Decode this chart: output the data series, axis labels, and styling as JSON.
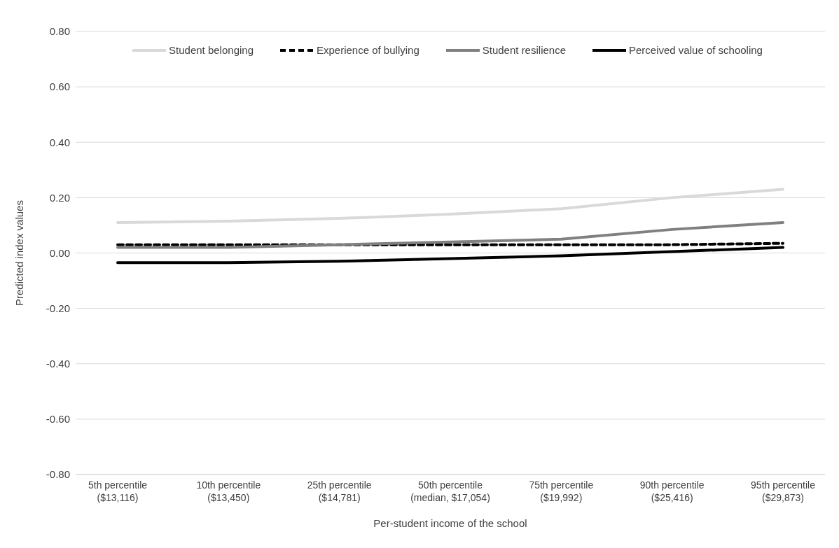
{
  "chart_data": {
    "type": "line",
    "categories": [
      "5th percentile\n($13,116)",
      "10th percentile\n($13,450)",
      "25th percentile\n($14,781)",
      "50th percentile\n(median, $17,054)",
      "75th percentile\n($19,992)",
      "90th percentile\n($25,416)",
      "95th percentile\n($29,873)"
    ],
    "series": [
      {
        "name": "Student belonging",
        "color": "#d9d9d9",
        "line_style": "solid",
        "values": [
          0.11,
          0.115,
          0.125,
          0.14,
          0.16,
          0.2,
          0.23
        ]
      },
      {
        "name": "Experience of bullying",
        "color": "#000000",
        "line_style": "dashed",
        "values": [
          0.03,
          0.03,
          0.03,
          0.03,
          0.03,
          0.03,
          0.035
        ]
      },
      {
        "name": "Student resilience",
        "color": "#808080",
        "line_style": "solid",
        "values": [
          0.02,
          0.02,
          0.03,
          0.04,
          0.05,
          0.085,
          0.11
        ]
      },
      {
        "name": "Perceived value of schooling",
        "color": "#000000",
        "line_style": "solid",
        "values": [
          -0.035,
          -0.035,
          -0.03,
          -0.02,
          -0.01,
          0.005,
          0.02
        ]
      }
    ],
    "xlabel": "Per-student income of the school",
    "ylabel": "Predicted index values",
    "ylim": [
      -0.8,
      0.8
    ],
    "yticks": [
      {
        "value": -0.8,
        "label": "-0.80"
      },
      {
        "value": -0.6,
        "label": "-0.60"
      },
      {
        "value": -0.4,
        "label": "-0.40"
      },
      {
        "value": -0.2,
        "label": "-0.20"
      },
      {
        "value": 0,
        "label": "0.00"
      },
      {
        "value": 0.2,
        "label": "0.20"
      },
      {
        "value": 0.4,
        "label": "0.40"
      },
      {
        "value": 0.6,
        "label": "0.60"
      },
      {
        "value": 0.8,
        "label": "0.80"
      }
    ],
    "grid": "y",
    "legend": "top",
    "marker": "none"
  }
}
